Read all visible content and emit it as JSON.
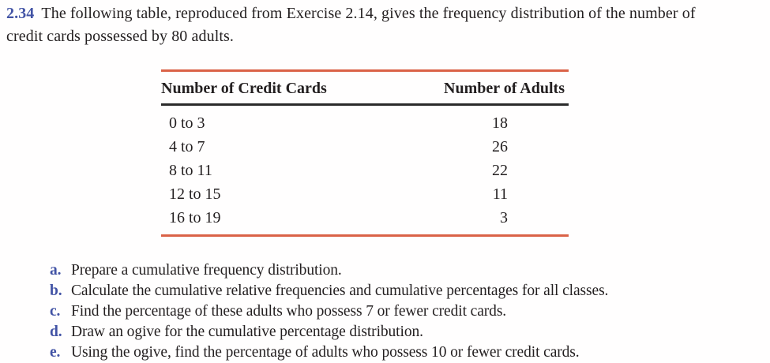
{
  "exercise": {
    "number": "2.34",
    "intro": "The following table, reproduced from Exercise 2.14, gives the frequency distribution of the number of credit cards possessed by 80 adults."
  },
  "table": {
    "col1_header": "Number of Credit Cards",
    "col2_header": "Number of Adults",
    "rows": [
      {
        "range": "0 to 3",
        "adults": "18"
      },
      {
        "range": "4 to 7",
        "adults": "26"
      },
      {
        "range": "8 to 11",
        "adults": "22"
      },
      {
        "range": "12 to 15",
        "adults": "11"
      },
      {
        "range": "16 to 19",
        "adults": "3"
      }
    ]
  },
  "questions": [
    {
      "letter": "a.",
      "text": "Prepare a cumulative frequency distribution."
    },
    {
      "letter": "b.",
      "text": "Calculate the cumulative relative frequencies and cumulative percentages for all classes."
    },
    {
      "letter": "c.",
      "text": "Find the percentage of these adults who possess 7 or fewer credit cards."
    },
    {
      "letter": "d.",
      "text": "Draw an ogive for the cumulative percentage distribution."
    },
    {
      "letter": "e.",
      "text": "Using the ogive, find the percentage of adults who possess 10 or fewer credit cards."
    }
  ],
  "colors": {
    "accent_blue": "#4253a5",
    "rule_red": "#da6247",
    "text_black": "#231f20"
  }
}
